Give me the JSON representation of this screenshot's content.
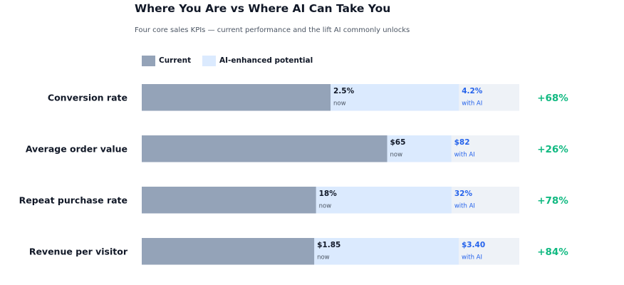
{
  "chart_data": {
    "type": "bar",
    "orientation": "horizontal",
    "title": "Where You Are vs Where AI Can Take You",
    "subtitle": "Four core sales KPIs — current performance and the lift AI commonly unlocks",
    "legend": [
      {
        "name": "Current",
        "color": "#94a3b8"
      },
      {
        "name": "AI-enhanced potential",
        "color": "#dbeafe"
      }
    ],
    "legend_position": "top-left",
    "grid": false,
    "categories": [
      "Conversion rate",
      "Average order value",
      "Repeat purchase rate",
      "Revenue per visitor"
    ],
    "series": [
      {
        "name": "Current",
        "values": [
          2.5,
          65,
          18,
          1.85
        ],
        "labels": [
          "2.5%",
          "$65",
          "18%",
          "$1.85"
        ],
        "sublabel": "now"
      },
      {
        "name": "AI-enhanced potential",
        "values": [
          4.2,
          82,
          32,
          3.4
        ],
        "labels": [
          "4.2%",
          "$82",
          "32%",
          "$3.40"
        ],
        "sublabel": "with AI"
      }
    ],
    "scale_max": [
      5.0,
      100,
      39,
      4.05
    ],
    "lift": [
      "+68%",
      "+26%",
      "+78%",
      "+84%"
    ],
    "colors": {
      "current": "#94a3b8",
      "ai": "#dbeafe",
      "track": "#eef2f7",
      "current_text": "#111827",
      "current_sub": "#4b5563",
      "ai_text": "#2563eb",
      "lift": "#10b981"
    }
  }
}
